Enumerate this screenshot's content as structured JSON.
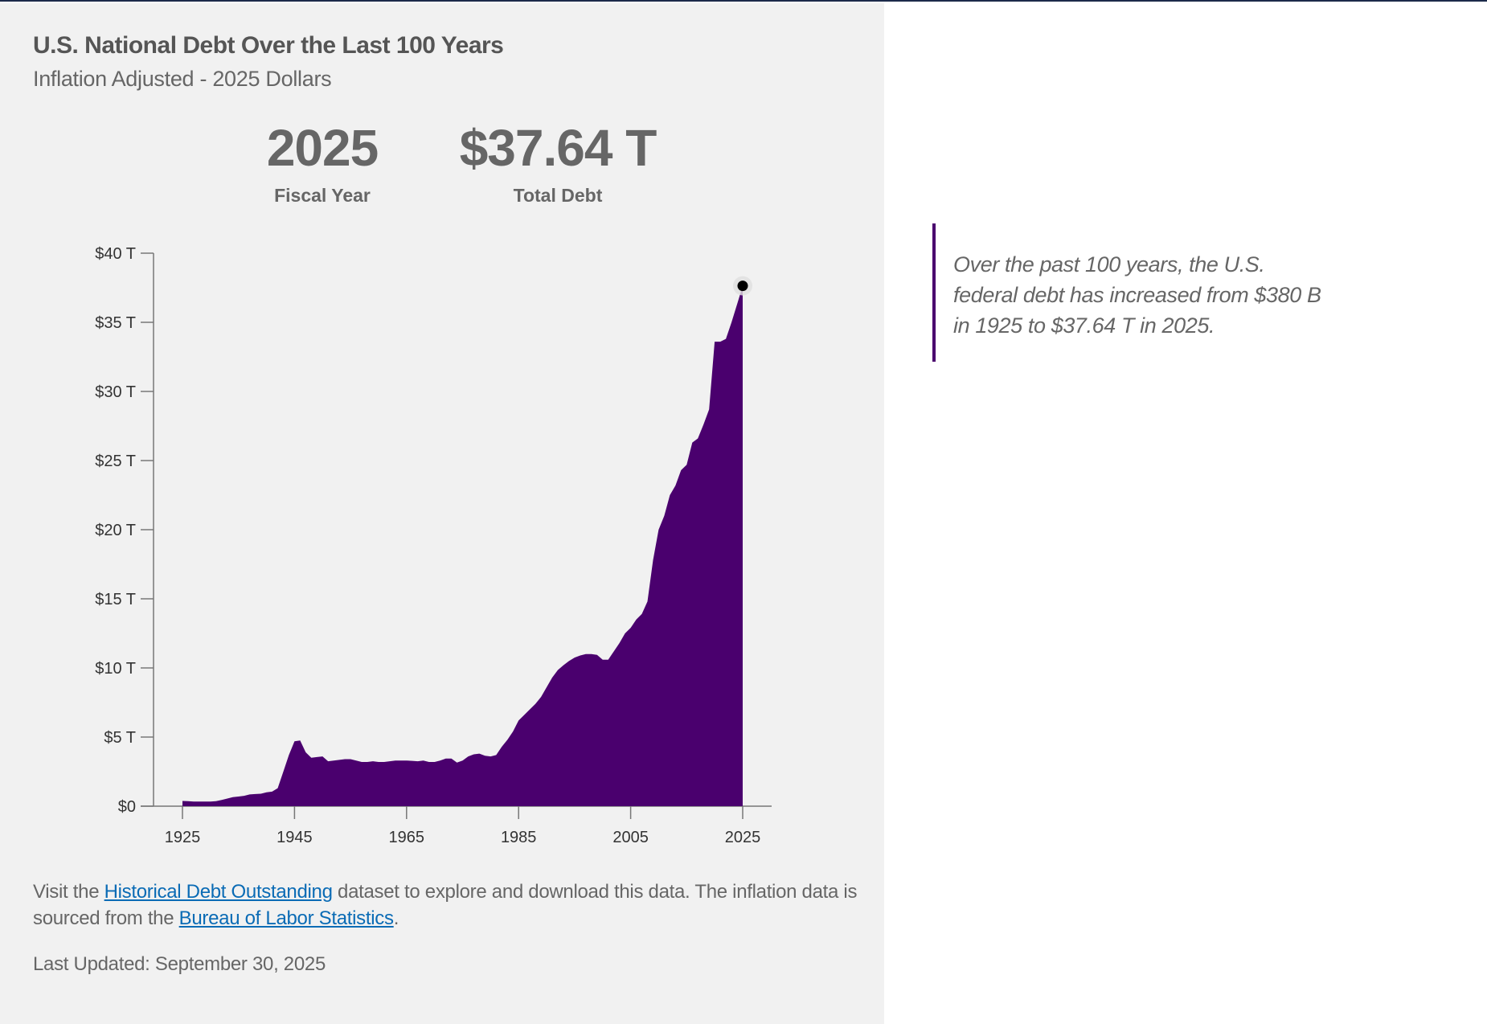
{
  "header": {
    "title": "U.S. National Debt Over the Last 100 Years",
    "subtitle": "Inflation Adjusted - 2025 Dollars"
  },
  "stats": {
    "year_value": "2025",
    "year_label": "Fiscal Year",
    "debt_value": "$37.64 T",
    "debt_label": "Total Debt"
  },
  "quote": {
    "text": "Over the past 100 years, the U.S. federal debt has increased from $380 B in 1925 to $37.64 T in 2025."
  },
  "footer": {
    "prefix": "Visit the ",
    "link1": "Historical Debt Outstanding",
    "middle": " dataset to explore and download this data. The inflation data is sourced from the ",
    "link2": "Bureau of Labor Statistics",
    "suffix": ".",
    "last_updated": "Last Updated: September 30, 2025"
  },
  "colors": {
    "area": "#4a006e",
    "link": "#0a6bb5",
    "panel_bg": "#f1f1f1"
  },
  "chart_data": {
    "type": "area",
    "title": "U.S. National Debt Over the Last 100 Years",
    "subtitle": "Inflation Adjusted - 2025 Dollars",
    "xlabel": "",
    "ylabel": "",
    "xlim": [
      1925,
      2025
    ],
    "ylim": [
      0,
      40
    ],
    "x_ticks": [
      1925,
      1945,
      1965,
      1985,
      2005,
      2025
    ],
    "x_tick_labels": [
      "1925",
      "1945",
      "1965",
      "1985",
      "2005",
      "2025"
    ],
    "y_ticks": [
      0,
      5,
      10,
      15,
      20,
      25,
      30,
      35,
      40
    ],
    "y_tick_labels": [
      "$0",
      "$5 T",
      "$10 T",
      "$15 T",
      "$20 T",
      "$25 T",
      "$30 T",
      "$35 T",
      "$40 T"
    ],
    "grid": false,
    "legend": "none",
    "highlight": {
      "year": 2025,
      "value": 37.64
    },
    "series": [
      {
        "name": "Total Debt (2025 $T)",
        "x": [
          1925,
          1926,
          1927,
          1928,
          1929,
          1930,
          1931,
          1932,
          1933,
          1934,
          1935,
          1936,
          1937,
          1938,
          1939,
          1940,
          1941,
          1942,
          1943,
          1944,
          1945,
          1946,
          1947,
          1948,
          1949,
          1950,
          1951,
          1952,
          1953,
          1954,
          1955,
          1956,
          1957,
          1958,
          1959,
          1960,
          1961,
          1962,
          1963,
          1964,
          1965,
          1966,
          1967,
          1968,
          1969,
          1970,
          1971,
          1972,
          1973,
          1974,
          1975,
          1976,
          1977,
          1978,
          1979,
          1980,
          1981,
          1982,
          1983,
          1984,
          1985,
          1986,
          1987,
          1988,
          1989,
          1990,
          1991,
          1992,
          1993,
          1994,
          1995,
          1996,
          1997,
          1998,
          1999,
          2000,
          2001,
          2002,
          2003,
          2004,
          2005,
          2006,
          2007,
          2008,
          2009,
          2010,
          2011,
          2012,
          2013,
          2014,
          2015,
          2016,
          2017,
          2018,
          2019,
          2020,
          2021,
          2022,
          2023,
          2024,
          2025
        ],
        "values": [
          0.38,
          0.36,
          0.34,
          0.33,
          0.33,
          0.33,
          0.36,
          0.45,
          0.55,
          0.65,
          0.7,
          0.75,
          0.85,
          0.88,
          0.9,
          1.0,
          1.05,
          1.3,
          2.5,
          3.7,
          4.7,
          4.75,
          3.9,
          3.5,
          3.55,
          3.6,
          3.25,
          3.3,
          3.35,
          3.4,
          3.4,
          3.3,
          3.2,
          3.2,
          3.25,
          3.2,
          3.2,
          3.25,
          3.3,
          3.3,
          3.3,
          3.28,
          3.25,
          3.3,
          3.2,
          3.2,
          3.3,
          3.45,
          3.45,
          3.15,
          3.3,
          3.6,
          3.75,
          3.8,
          3.65,
          3.6,
          3.7,
          4.3,
          4.8,
          5.4,
          6.2,
          6.6,
          7.0,
          7.4,
          7.9,
          8.6,
          9.3,
          9.85,
          10.2,
          10.5,
          10.75,
          10.9,
          11.0,
          11.0,
          10.95,
          10.6,
          10.6,
          11.2,
          11.8,
          12.5,
          12.9,
          13.5,
          13.9,
          14.8,
          17.8,
          20.0,
          21.0,
          22.5,
          23.2,
          24.3,
          24.7,
          26.3,
          26.6,
          27.6,
          28.7,
          33.6,
          33.6,
          33.8,
          35.0,
          36.3,
          37.64
        ]
      }
    ]
  }
}
